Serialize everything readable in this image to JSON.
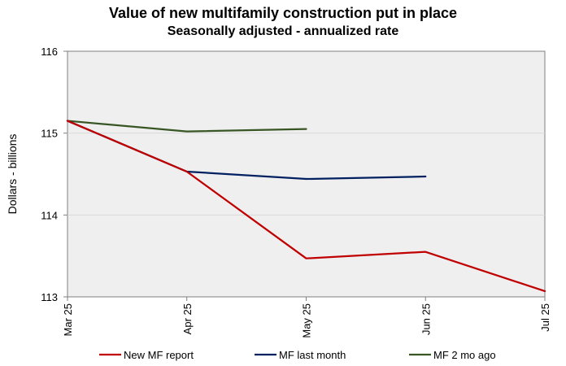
{
  "chart_data": {
    "type": "line",
    "title": "Value of new multifamily  construction put in place",
    "subtitle": "Seasonally adjusted - annualized rate",
    "xlabel": "",
    "ylabel": "Dollars - billions",
    "categories": [
      "Mar 25",
      "Apr 25",
      "May 25",
      "Jun 25",
      "Jul 25"
    ],
    "ylim": [
      113,
      116
    ],
    "yticks": [
      113,
      114,
      115,
      116
    ],
    "grid": true,
    "legend_position": "bottom",
    "series": [
      {
        "name": "New MF report",
        "color": "#C00000",
        "values": [
          115.15,
          114.53,
          113.47,
          113.55,
          113.07
        ]
      },
      {
        "name": "MF last month",
        "color": "#002060",
        "values": [
          115.15,
          114.53,
          114.44,
          114.47,
          null
        ]
      },
      {
        "name": "MF 2 mo ago",
        "color": "#375623",
        "values": [
          115.15,
          115.02,
          115.05,
          null,
          null
        ]
      }
    ]
  }
}
